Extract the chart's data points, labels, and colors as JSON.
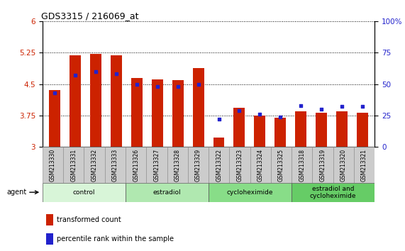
{
  "title": "GDS3315 / 216069_at",
  "samples": [
    "GSM213330",
    "GSM213331",
    "GSM213332",
    "GSM213333",
    "GSM213326",
    "GSM213327",
    "GSM213328",
    "GSM213329",
    "GSM213322",
    "GSM213323",
    "GSM213324",
    "GSM213325",
    "GSM213318",
    "GSM213319",
    "GSM213320",
    "GSM213321"
  ],
  "red_values": [
    4.35,
    5.18,
    5.22,
    5.19,
    4.65,
    4.62,
    4.6,
    4.88,
    3.22,
    3.93,
    3.75,
    3.7,
    3.85,
    3.82,
    3.85,
    3.82
  ],
  "blue_percentiles": [
    43,
    57,
    60,
    58,
    50,
    48,
    48,
    50,
    22,
    29,
    26,
    24,
    33,
    30,
    32,
    32
  ],
  "y_min": 3.0,
  "y_max": 6.0,
  "y_ticks_left": [
    3.0,
    3.75,
    4.5,
    5.25,
    6.0
  ],
  "y_labels_left": [
    "3",
    "3.75",
    "4.5",
    "5.25",
    "6"
  ],
  "y_ticks_right": [
    0,
    25,
    50,
    75,
    100
  ],
  "y_labels_right": [
    "0",
    "25",
    "50",
    "75",
    "100%"
  ],
  "groups": [
    {
      "label": "control",
      "start": 0,
      "end": 4,
      "color": "#d8f5d8"
    },
    {
      "label": "estradiol",
      "start": 4,
      "end": 8,
      "color": "#b0e8b0"
    },
    {
      "label": "cycloheximide",
      "start": 8,
      "end": 12,
      "color": "#88dd88"
    },
    {
      "label": "estradiol and\ncycloheximide",
      "start": 12,
      "end": 16,
      "color": "#66cc66"
    }
  ],
  "bar_color": "#cc2200",
  "dot_color": "#2222cc",
  "bar_width": 0.55,
  "background_color": "#ffffff",
  "left_label_color": "#cc2200",
  "right_label_color": "#2222cc",
  "sample_box_color": "#cccccc",
  "n_samples": 16
}
